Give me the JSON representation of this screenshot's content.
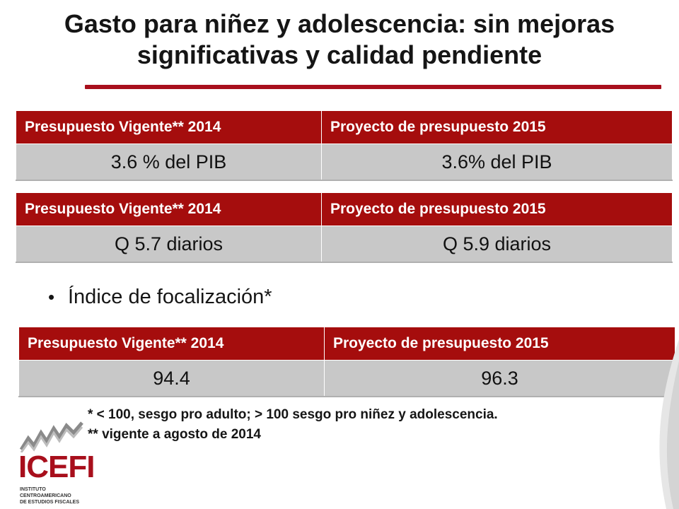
{
  "title": {
    "line1": "Gasto para niñez y adolescencia: sin mejoras",
    "line2": "significativas y calidad pendiente"
  },
  "tables": [
    {
      "headers": [
        "Presupuesto Vigente** 2014",
        "Proyecto de presupuesto 2015"
      ],
      "values": [
        "3.6 % del PIB",
        "3.6% del PIB"
      ]
    },
    {
      "headers": [
        "Presupuesto Vigente** 2014",
        "Proyecto de presupuesto 2015"
      ],
      "values": [
        "Q 5.7 diarios",
        "Q 5.9 diarios"
      ]
    },
    {
      "headers": [
        "Presupuesto Vigente** 2014",
        "Proyecto de presupuesto 2015"
      ],
      "values": [
        "94.4",
        "96.3"
      ]
    }
  ],
  "bullet": {
    "symbol": "•",
    "text": "Índice de focalización*"
  },
  "notes": [
    "* < 100, sesgo pro adulto; > 100 sesgo pro niñez y adolescencia.",
    "** vigente a agosto de 2014"
  ],
  "logo": {
    "wordmark": "ICEFI",
    "subtitle_line1": "INSTITUTO CENTROAMERICANO",
    "subtitle_line2": "DE ESTUDIOS FISCALES"
  },
  "colors": {
    "accent": "#a80f1c",
    "header_bg": "#a50d0d",
    "cell_bg": "#c8c8c8"
  }
}
